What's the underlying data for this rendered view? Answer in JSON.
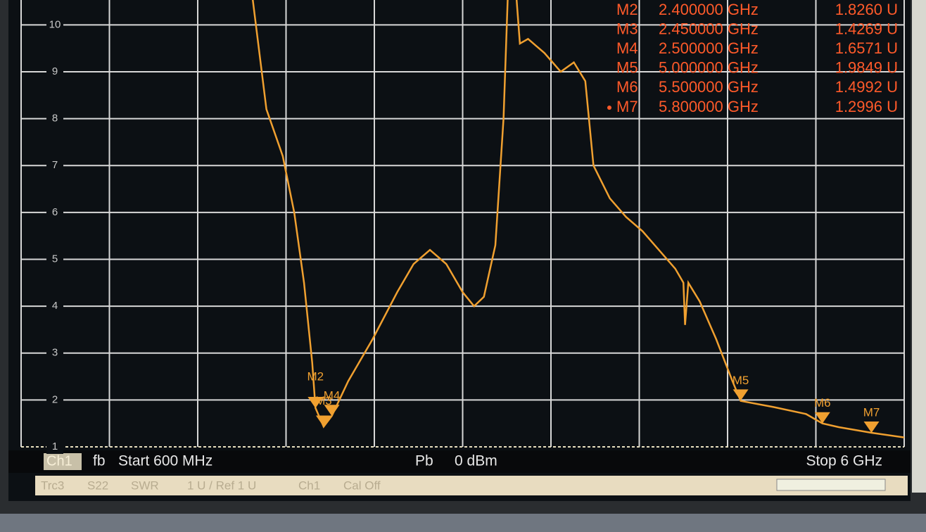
{
  "chart_data": {
    "type": "line",
    "x": [
      2.0,
      2.1,
      2.2,
      2.27,
      2.33,
      2.38,
      2.4,
      2.45,
      2.5,
      2.6,
      2.75,
      2.9,
      3.0,
      3.1,
      3.2,
      3.3,
      3.37,
      3.43,
      3.5,
      3.55,
      3.58,
      3.62,
      3.65,
      3.7,
      3.8,
      3.9,
      3.98,
      4.05,
      4.1,
      4.2,
      4.3,
      4.4,
      4.5,
      4.6,
      4.65,
      4.66,
      4.68,
      4.75,
      4.85,
      4.95,
      5.0,
      5.2,
      5.4,
      5.5,
      5.6,
      5.8,
      6.0
    ],
    "series": [
      {
        "color": "#f0a030",
        "values": [
          11,
          8.2,
          7.2,
          6.0,
          4.5,
          2.8,
          1.83,
          1.43,
          1.66,
          2.4,
          3.3,
          4.3,
          4.9,
          5.2,
          4.9,
          4.3,
          4.0,
          4.2,
          5.3,
          8,
          11,
          11,
          9.6,
          9.7,
          9.4,
          9.0,
          9.2,
          8.8,
          7.0,
          6.3,
          5.9,
          5.6,
          5.2,
          4.8,
          4.5,
          3.6,
          4.5,
          4.1,
          3.3,
          2.4,
          1.98,
          1.85,
          1.7,
          1.5,
          1.42,
          1.3,
          1.2
        ]
      }
    ],
    "xlim": [
      0.6,
      6
    ],
    "ylim": [
      1,
      10.5
    ],
    "yticks": [
      1,
      2,
      3,
      4,
      5,
      6,
      7,
      8,
      9,
      10
    ],
    "grid": true,
    "markers": [
      {
        "name": "M2",
        "x": 2.4,
        "x_label": "2.400000 GHz",
        "value": 1.826,
        "value_label": "1.8260 U"
      },
      {
        "name": "M3",
        "x": 2.45,
        "x_label": "2.450000 GHz",
        "value": 1.4269,
        "value_label": "1.4269 U"
      },
      {
        "name": "M4",
        "x": 2.5,
        "x_label": "2.500000 GHz",
        "value": 1.6571,
        "value_label": "1.6571 U"
      },
      {
        "name": "M5",
        "x": 5.0,
        "x_label": "5.000000 GHz",
        "value": 1.9849,
        "value_label": "1.9849 U"
      },
      {
        "name": "M6",
        "x": 5.5,
        "x_label": "5.500000 GHz",
        "value": 1.4992,
        "value_label": "1.4992 U"
      },
      {
        "name": "M7",
        "x": 5.8,
        "x_label": "5.800000 GHz",
        "value": 1.2996,
        "value_label": "1.2996 U",
        "active": true
      }
    ]
  },
  "footer": {
    "channel": "Ch1",
    "trace_type": "fb",
    "start": "Start 600 MHz",
    "power_label": "Pb",
    "power": "0 dBm",
    "stop": "Stop 6 GHz"
  },
  "status_bar": [
    "Trc3",
    "S22",
    "SWR",
    "1 U / Ref 1 U",
    "Ch1",
    "Cal Off"
  ]
}
